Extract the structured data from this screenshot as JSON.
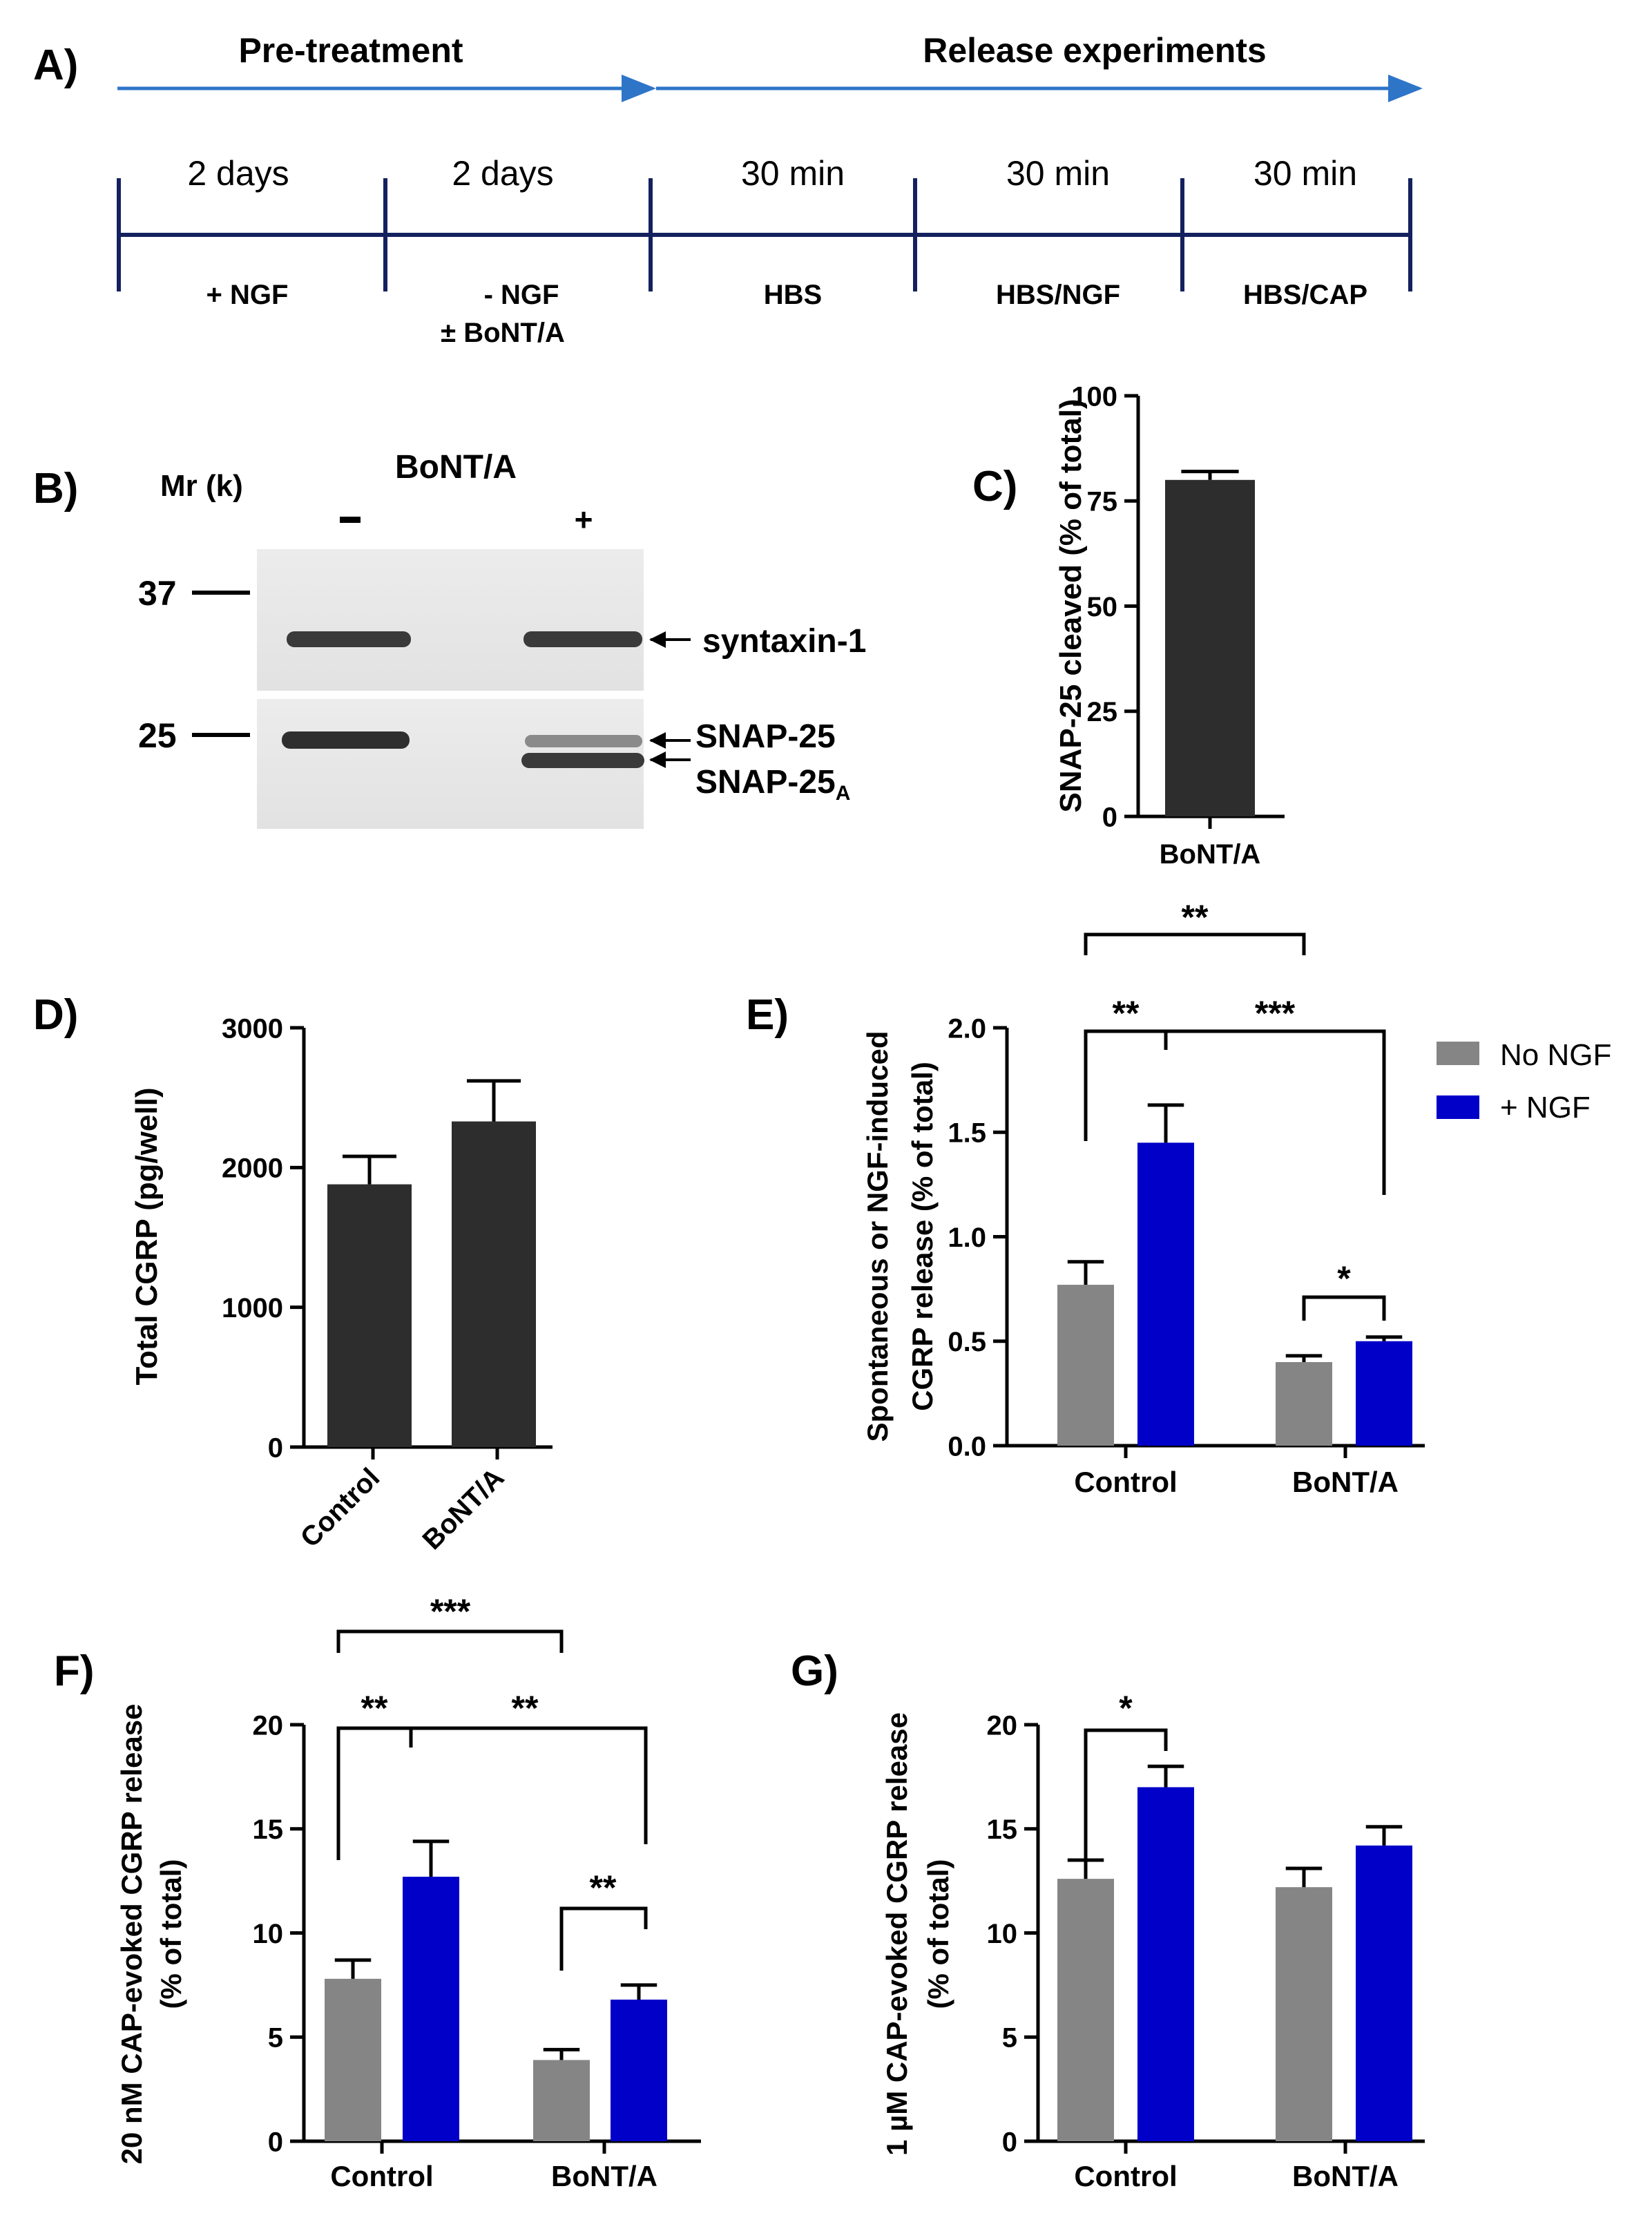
{
  "panels": {
    "A": "A)",
    "B": "B)",
    "C": "C)",
    "D": "D)",
    "E": "E)",
    "F": "F)",
    "G": "G)"
  },
  "timeline": {
    "phase_pre": "Pre-treatment",
    "phase_release": "Release experiments",
    "durations": [
      "2 days",
      "2 days",
      "30 min",
      "30 min",
      "30 min"
    ],
    "conditions": [
      "+ NGF",
      "- NGF",
      "HBS",
      "HBS/NGF",
      "HBS/CAP"
    ],
    "condition_extra": "± BoNT/A",
    "arrow_color": "#2e75c8",
    "line_color": "#14215e"
  },
  "blot": {
    "title": "BoNT/A",
    "mr_label": "Mr (k)",
    "lane_minus": "-",
    "lane_plus": "+",
    "marker_37": "37",
    "marker_25": "25",
    "band_syntaxin": "syntaxin-1",
    "band_snap25": "SNAP-25",
    "band_snap25a": "SNAP-25",
    "band_snap25a_sub": "A"
  },
  "legend": {
    "no_ngf": "No NGF",
    "plus_ngf": "+ NGF"
  },
  "colors": {
    "dark_bar": "#2d2d2d",
    "no_ngf": "#858585",
    "plus_ngf": "#0000c8"
  },
  "chart_data": [
    {
      "id": "C",
      "type": "bar",
      "ylabel": "SNAP-25 cleaved (% of total)",
      "ylim": [
        0,
        100
      ],
      "yticks": [
        "0",
        "25",
        "50",
        "75",
        "100"
      ],
      "categories": [
        "BoNT/A"
      ],
      "values": [
        80
      ],
      "errors": [
        2
      ]
    },
    {
      "id": "D",
      "type": "bar",
      "ylabel": "Total CGRP (pg/well)",
      "ylim": [
        0,
        3000
      ],
      "yticks": [
        "0",
        "1000",
        "2000",
        "3000"
      ],
      "categories": [
        "Control",
        "BoNT/A"
      ],
      "values": [
        1880,
        2330
      ],
      "errors": [
        200,
        290
      ]
    },
    {
      "id": "E",
      "type": "bar",
      "ylabel": [
        "Spontaneous or NGF-induced",
        "CGRP release (% of total)"
      ],
      "ylim": [
        0,
        2.0
      ],
      "yticks": [
        "0.0",
        "0.5",
        "1.0",
        "1.5",
        "2.0"
      ],
      "categories": [
        "Control",
        "BoNT/A"
      ],
      "series": [
        {
          "name": "No NGF",
          "values": [
            0.77,
            0.4
          ],
          "errors": [
            0.11,
            0.03
          ]
        },
        {
          "name": "+ NGF",
          "values": [
            1.45,
            0.5
          ],
          "errors": [
            0.18,
            0.02
          ]
        }
      ],
      "significance": [
        "**",
        "**",
        "***",
        "*"
      ]
    },
    {
      "id": "F",
      "type": "bar",
      "ylabel": [
        "20 nM CAP-evoked CGRP release",
        "(% of total)"
      ],
      "ylim": [
        0,
        20
      ],
      "yticks": [
        "0",
        "5",
        "10",
        "15",
        "20"
      ],
      "categories": [
        "Control",
        "BoNT/A"
      ],
      "series": [
        {
          "name": "No NGF",
          "values": [
            7.8,
            3.9
          ],
          "errors": [
            0.9,
            0.5
          ]
        },
        {
          "name": "+ NGF",
          "values": [
            12.7,
            6.8
          ],
          "errors": [
            1.7,
            0.7
          ]
        }
      ],
      "significance": [
        "***",
        "**",
        "**",
        "**"
      ]
    },
    {
      "id": "G",
      "type": "bar",
      "ylabel": [
        "1 µM CAP-evoked CGRP release",
        "(% of total)"
      ],
      "ylim": [
        0,
        20
      ],
      "yticks": [
        "0",
        "5",
        "10",
        "15",
        "20"
      ],
      "categories": [
        "Control",
        "BoNT/A"
      ],
      "series": [
        {
          "name": "No NGF",
          "values": [
            12.6,
            12.2
          ],
          "errors": [
            0.9,
            0.9
          ]
        },
        {
          "name": "+ NGF",
          "values": [
            17.0,
            14.2
          ],
          "errors": [
            1.0,
            0.9
          ]
        }
      ],
      "significance": [
        "*"
      ]
    }
  ]
}
